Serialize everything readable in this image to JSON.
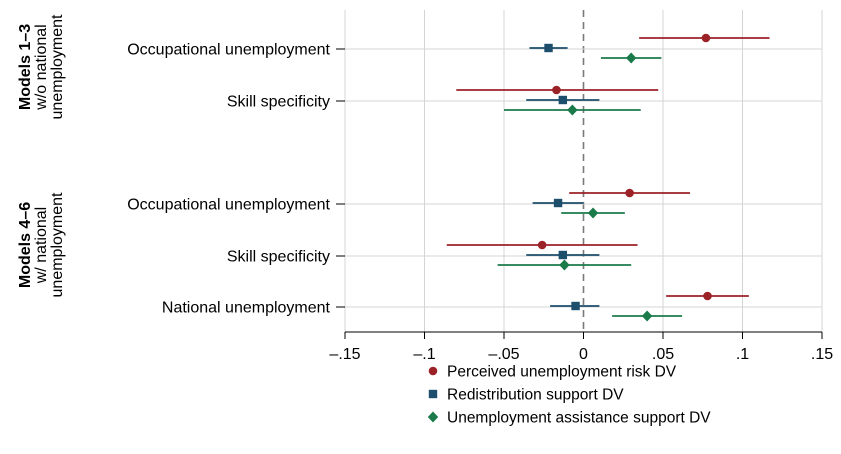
{
  "chart_data": {
    "type": "coefficient-plot",
    "x_axis": {
      "ticks": [
        -0.15,
        -0.1,
        -0.05,
        0,
        0.05,
        0.1,
        0.15
      ],
      "tick_labels": [
        "–.15",
        "–.1",
        "–.05",
        "0",
        ".05",
        ".1",
        ".15"
      ],
      "range": [
        -0.15,
        0.15
      ],
      "zero_line": "dashed"
    },
    "grid": true,
    "groups": [
      {
        "title": "Models 1–3",
        "subtitle_lines": [
          "w/o national",
          "unemployment"
        ],
        "rows": [
          {
            "label": "Occupational unemployment",
            "estimates": [
              {
                "series": "Perceived unemployment risk DV",
                "value": 0.077,
                "ci": [
                  0.035,
                  0.117
                ]
              },
              {
                "series": "Redistribution support DV",
                "value": -0.022,
                "ci": [
                  -0.034,
                  -0.01
                ]
              },
              {
                "series": "Unemployment assistance support DV",
                "value": 0.03,
                "ci": [
                  0.011,
                  0.049
                ]
              }
            ]
          },
          {
            "label": "Skill specificity",
            "estimates": [
              {
                "series": "Perceived unemployment risk DV",
                "value": -0.017,
                "ci": [
                  -0.08,
                  0.047
                ]
              },
              {
                "series": "Redistribution support DV",
                "value": -0.013,
                "ci": [
                  -0.036,
                  0.01
                ]
              },
              {
                "series": "Unemployment assistance support DV",
                "value": -0.007,
                "ci": [
                  -0.05,
                  0.036
                ]
              }
            ]
          }
        ]
      },
      {
        "title": "Models 4–6",
        "subtitle_lines": [
          "w/ national",
          "unemployment"
        ],
        "rows": [
          {
            "label": "Occupational unemployment",
            "estimates": [
              {
                "series": "Perceived unemployment risk DV",
                "value": 0.029,
                "ci": [
                  -0.009,
                  0.067
                ]
              },
              {
                "series": "Redistribution support DV",
                "value": -0.016,
                "ci": [
                  -0.032,
                  0.0
                ]
              },
              {
                "series": "Unemployment assistance support DV",
                "value": 0.006,
                "ci": [
                  -0.014,
                  0.026
                ]
              }
            ]
          },
          {
            "label": "Skill specificity",
            "estimates": [
              {
                "series": "Perceived unemployment risk DV",
                "value": -0.026,
                "ci": [
                  -0.086,
                  0.034
                ]
              },
              {
                "series": "Redistribution support DV",
                "value": -0.013,
                "ci": [
                  -0.036,
                  0.01
                ]
              },
              {
                "series": "Unemployment assistance support DV",
                "value": -0.012,
                "ci": [
                  -0.054,
                  0.03
                ]
              }
            ]
          },
          {
            "label": "National unemployment",
            "estimates": [
              {
                "series": "Perceived unemployment risk DV",
                "value": 0.078,
                "ci": [
                  0.052,
                  0.104
                ]
              },
              {
                "series": "Redistribution support DV",
                "value": -0.005,
                "ci": [
                  -0.021,
                  0.01
                ]
              },
              {
                "series": "Unemployment assistance support DV",
                "value": 0.04,
                "ci": [
                  0.018,
                  0.062
                ]
              }
            ]
          }
        ]
      }
    ],
    "series": [
      {
        "name": "Perceived unemployment risk DV",
        "marker": "circle",
        "color": "#9b2226"
      },
      {
        "name": "Redistribution support DV",
        "marker": "square",
        "color": "#1d4e6b"
      },
      {
        "name": "Unemployment assistance support DV",
        "marker": "diamond",
        "color": "#1b7a4a"
      }
    ],
    "legend_position": "bottom"
  }
}
